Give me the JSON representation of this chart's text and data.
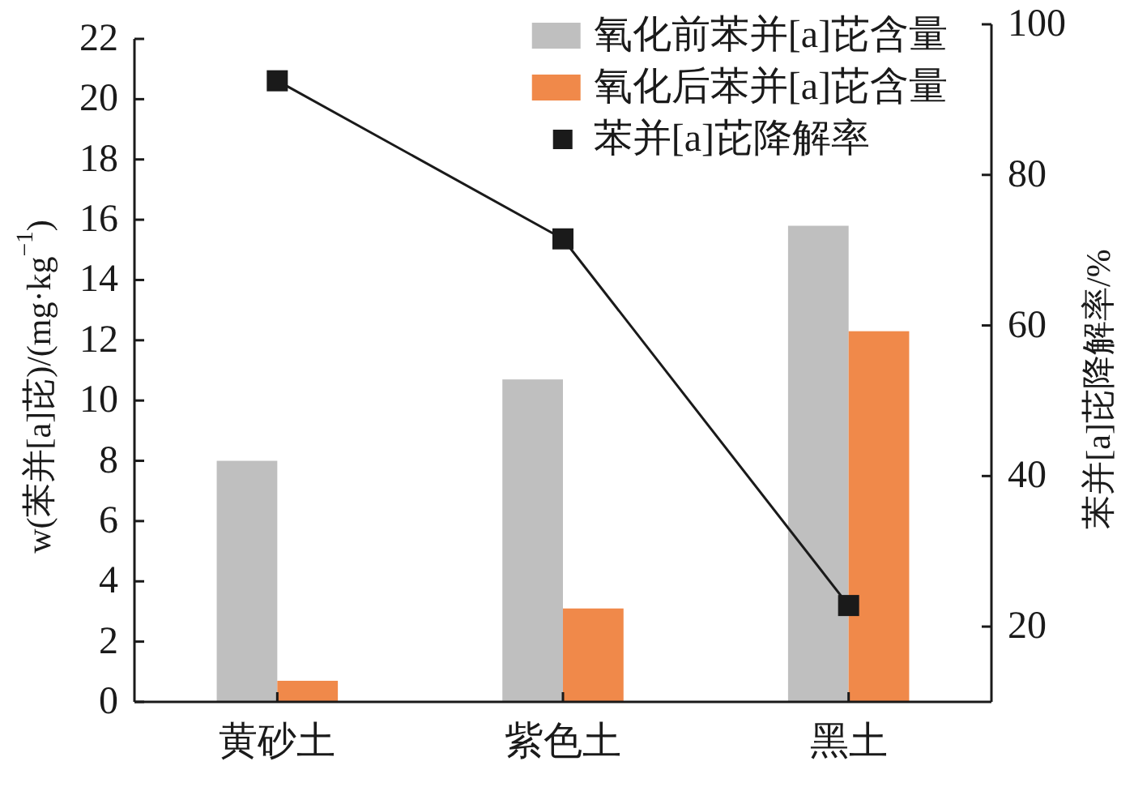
{
  "chart_data": {
    "type": "bar",
    "categories": [
      "黄砂土",
      "紫色土",
      "黑土"
    ],
    "series": [
      {
        "name": "氧化前苯并[a]芘含量",
        "color": "#bfbfbf",
        "values": [
          8.0,
          10.7,
          15.8
        ]
      },
      {
        "name": "氧化后苯并[a]芘含量",
        "color": "#f0894a",
        "values": [
          0.7,
          3.1,
          12.3
        ]
      },
      {
        "name": "苯并[a]芘降解率",
        "type": "line",
        "axis": "y2",
        "color": "#1a1a1a",
        "marker": "square",
        "values": [
          92.5,
          71.5,
          22.8
        ]
      }
    ],
    "ylabel": "w(苯并[a]芘)/(mg·kg$^{−1}$)",
    "y2label": "苯并[a]芘降解率/%",
    "ylim": [
      0,
      22
    ],
    "yticks": [
      0,
      2,
      4,
      6,
      8,
      10,
      12,
      14,
      16,
      18,
      20,
      22
    ],
    "y2lim": [
      10,
      100
    ],
    "y2ticks": [
      20,
      40,
      60,
      80,
      100
    ],
    "legend": "top right"
  }
}
